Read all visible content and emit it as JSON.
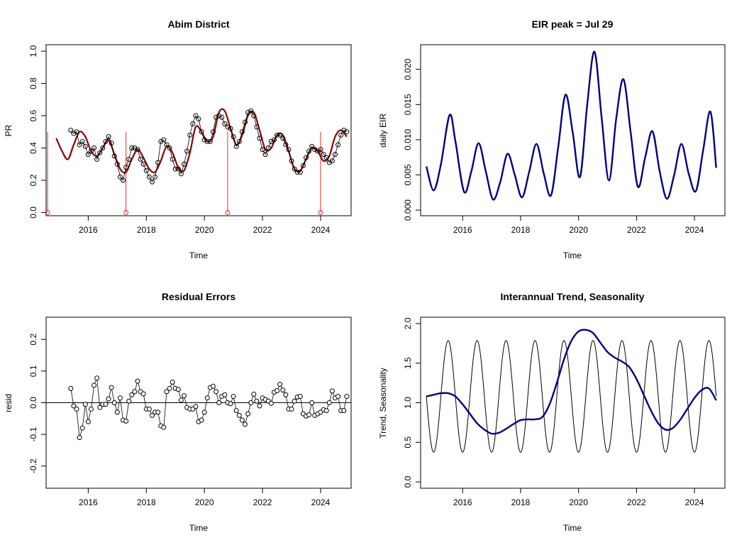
{
  "chart_data": [
    {
      "id": "pr",
      "type": "line",
      "title": "Abim District",
      "xlabel": "Time",
      "ylabel": "PR",
      "xlim": [
        2014.55,
        2025.05
      ],
      "ylim": [
        -0.02,
        1.04
      ],
      "xticks": [
        2016,
        2018,
        2020,
        2022,
        2024
      ],
      "yticks": [
        0.0,
        0.2,
        0.4,
        0.6,
        0.8,
        1.0
      ],
      "ytick_labels": [
        "0.0",
        "0.2",
        "0.4",
        "0.6",
        "0.8",
        "1.0"
      ],
      "fit_color": "#8B0000",
      "observed_color": "#000000",
      "event_color": "#E03020",
      "fit_curve": {
        "x": [
          2014.9,
          2015.1,
          2015.3,
          2015.5,
          2015.7,
          2015.9,
          2016.1,
          2016.3,
          2016.5,
          2016.7,
          2016.9,
          2017.1,
          2017.3,
          2017.5,
          2017.7,
          2017.9,
          2018.1,
          2018.3,
          2018.5,
          2018.7,
          2018.9,
          2019.1,
          2019.3,
          2019.5,
          2019.7,
          2019.9,
          2020.1,
          2020.3,
          2020.5,
          2020.7,
          2020.9,
          2021.1,
          2021.3,
          2021.5,
          2021.7,
          2021.9,
          2022.1,
          2022.3,
          2022.5,
          2022.7,
          2022.9,
          2023.1,
          2023.3,
          2023.5,
          2023.7,
          2023.9,
          2024.1,
          2024.3,
          2024.5,
          2024.7,
          2024.9
        ],
        "y": [
          0.46,
          0.38,
          0.33,
          0.42,
          0.5,
          0.47,
          0.38,
          0.35,
          0.4,
          0.45,
          0.36,
          0.27,
          0.25,
          0.33,
          0.39,
          0.34,
          0.27,
          0.25,
          0.32,
          0.41,
          0.37,
          0.28,
          0.26,
          0.37,
          0.53,
          0.5,
          0.44,
          0.47,
          0.62,
          0.63,
          0.52,
          0.42,
          0.48,
          0.6,
          0.62,
          0.51,
          0.39,
          0.4,
          0.48,
          0.48,
          0.38,
          0.27,
          0.26,
          0.33,
          0.4,
          0.38,
          0.32,
          0.35,
          0.47,
          0.51,
          0.47
        ]
      },
      "observed": {
        "x": [
          2015.4,
          2015.5,
          2015.6,
          2015.7,
          2015.8,
          2015.9,
          2016.0,
          2016.1,
          2016.2,
          2016.3,
          2016.4,
          2016.5,
          2016.6,
          2016.7,
          2016.8,
          2016.9,
          2017.0,
          2017.1,
          2017.2,
          2017.3,
          2017.4,
          2017.5,
          2017.6,
          2017.7,
          2017.8,
          2017.9,
          2018.0,
          2018.1,
          2018.2,
          2018.3,
          2018.4,
          2018.5,
          2018.6,
          2018.7,
          2018.8,
          2018.9,
          2019.0,
          2019.1,
          2019.2,
          2019.3,
          2019.4,
          2019.5,
          2019.6,
          2019.7,
          2019.8,
          2019.9,
          2020.0,
          2020.1,
          2020.2,
          2020.3,
          2020.4,
          2020.5,
          2020.6,
          2020.7,
          2020.8,
          2020.9,
          2021.0,
          2021.1,
          2021.2,
          2021.3,
          2021.4,
          2021.5,
          2021.6,
          2021.7,
          2021.8,
          2021.9,
          2022.0,
          2022.1,
          2022.2,
          2022.3,
          2022.4,
          2022.5,
          2022.6,
          2022.7,
          2022.8,
          2022.9,
          2023.0,
          2023.1,
          2023.2,
          2023.3,
          2023.4,
          2023.5,
          2023.6,
          2023.7,
          2023.8,
          2023.9,
          2024.0,
          2024.1,
          2024.2,
          2024.3,
          2024.4,
          2024.5,
          2024.6,
          2024.7,
          2024.8,
          2024.9
        ],
        "y": [
          0.51,
          0.49,
          0.5,
          0.42,
          0.44,
          0.41,
          0.36,
          0.38,
          0.4,
          0.33,
          0.37,
          0.4,
          0.44,
          0.47,
          0.43,
          0.35,
          0.3,
          0.22,
          0.2,
          0.28,
          0.33,
          0.4,
          0.4,
          0.39,
          0.33,
          0.3,
          0.26,
          0.22,
          0.19,
          0.22,
          0.31,
          0.44,
          0.45,
          0.42,
          0.4,
          0.33,
          0.27,
          0.27,
          0.24,
          0.3,
          0.38,
          0.48,
          0.55,
          0.6,
          0.58,
          0.5,
          0.45,
          0.44,
          0.44,
          0.5,
          0.59,
          0.6,
          0.59,
          0.55,
          0.53,
          0.52,
          0.47,
          0.41,
          0.44,
          0.5,
          0.56,
          0.62,
          0.63,
          0.6,
          0.53,
          0.46,
          0.39,
          0.36,
          0.4,
          0.44,
          0.45,
          0.48,
          0.48,
          0.46,
          0.42,
          0.39,
          0.32,
          0.27,
          0.25,
          0.25,
          0.29,
          0.34,
          0.38,
          0.41,
          0.39,
          0.38,
          0.39,
          0.36,
          0.34,
          0.31,
          0.32,
          0.36,
          0.42,
          0.48,
          0.51,
          0.5
        ]
      },
      "events": {
        "x": [
          2014.6,
          2017.3,
          2020.8,
          2024.0
        ],
        "y_top": [
          0.5,
          0.5,
          0.5,
          0.5
        ]
      }
    },
    {
      "id": "eir",
      "type": "line",
      "title": "EIR peak = Jul 29",
      "xlabel": "Time",
      "ylabel": "daily EIR",
      "xlim": [
        2014.55,
        2025.05
      ],
      "ylim": [
        -0.0008,
        0.0235
      ],
      "xticks": [
        2016,
        2018,
        2020,
        2022,
        2024
      ],
      "yticks": [
        0.0,
        0.005,
        0.01,
        0.015,
        0.02
      ],
      "ytick_labels": [
        "0.000",
        "0.005",
        "0.010",
        "0.015",
        "0.020"
      ],
      "line_color": "#000080",
      "series": {
        "name": "",
        "x": [
          2014.75,
          2015.0,
          2015.25,
          2015.55,
          2015.75,
          2016.05,
          2016.3,
          2016.55,
          2016.8,
          2017.05,
          2017.3,
          2017.55,
          2017.8,
          2018.05,
          2018.3,
          2018.55,
          2018.8,
          2019.05,
          2019.3,
          2019.55,
          2019.8,
          2020.05,
          2020.3,
          2020.55,
          2020.8,
          2021.05,
          2021.3,
          2021.55,
          2021.8,
          2022.05,
          2022.3,
          2022.55,
          2022.8,
          2023.05,
          2023.3,
          2023.55,
          2023.8,
          2024.05,
          2024.3,
          2024.55,
          2024.75
        ],
        "y": [
          0.0062,
          0.0028,
          0.0065,
          0.0135,
          0.0098,
          0.0026,
          0.0055,
          0.0095,
          0.0055,
          0.0015,
          0.004,
          0.008,
          0.005,
          0.0018,
          0.0055,
          0.0094,
          0.0052,
          0.0021,
          0.009,
          0.0164,
          0.011,
          0.0047,
          0.015,
          0.0225,
          0.013,
          0.0042,
          0.013,
          0.0186,
          0.011,
          0.0033,
          0.0075,
          0.0112,
          0.0055,
          0.0016,
          0.005,
          0.0094,
          0.0052,
          0.0027,
          0.0085,
          0.014,
          0.006
        ]
      }
    },
    {
      "id": "resid",
      "type": "scatter",
      "title": "Residual Errors",
      "xlabel": "Time",
      "ylabel": "resid",
      "xlim": [
        2014.55,
        2025.05
      ],
      "ylim": [
        -0.27,
        0.27
      ],
      "xticks": [
        2016,
        2018,
        2020,
        2022,
        2024
      ],
      "yticks": [
        -0.2,
        -0.1,
        0.0,
        0.1,
        0.2
      ],
      "ytick_labels": [
        "-0.2",
        "-0.1",
        "0.0",
        "0.1",
        "0.2"
      ],
      "point_color": "#000000",
      "zero_line": true,
      "series": {
        "name": "",
        "x": [
          2015.4,
          2015.5,
          2015.6,
          2015.7,
          2015.8,
          2015.9,
          2016.0,
          2016.1,
          2016.2,
          2016.3,
          2016.4,
          2016.5,
          2016.6,
          2016.7,
          2016.8,
          2016.9,
          2017.0,
          2017.1,
          2017.2,
          2017.3,
          2017.4,
          2017.5,
          2017.6,
          2017.7,
          2017.8,
          2017.9,
          2018.0,
          2018.1,
          2018.2,
          2018.3,
          2018.4,
          2018.5,
          2018.6,
          2018.7,
          2018.8,
          2018.9,
          2019.0,
          2019.1,
          2019.2,
          2019.3,
          2019.4,
          2019.5,
          2019.6,
          2019.7,
          2019.8,
          2019.9,
          2020.0,
          2020.1,
          2020.2,
          2020.3,
          2020.4,
          2020.5,
          2020.6,
          2020.7,
          2020.8,
          2020.9,
          2021.0,
          2021.1,
          2021.2,
          2021.3,
          2021.4,
          2021.5,
          2021.6,
          2021.7,
          2021.8,
          2021.9,
          2022.0,
          2022.1,
          2022.2,
          2022.3,
          2022.4,
          2022.5,
          2022.6,
          2022.7,
          2022.8,
          2022.9,
          2023.0,
          2023.1,
          2023.2,
          2023.3,
          2023.4,
          2023.5,
          2023.6,
          2023.7,
          2023.8,
          2023.9,
          2024.0,
          2024.1,
          2024.2,
          2024.3,
          2024.4,
          2024.5,
          2024.6,
          2024.7,
          2024.8,
          2024.9
        ],
        "y": [
          0.045,
          -0.01,
          -0.02,
          -0.11,
          -0.08,
          -0.005,
          -0.06,
          -0.02,
          0.055,
          0.078,
          -0.015,
          -0.005,
          -0.005,
          0.012,
          0.048,
          0.0,
          -0.03,
          0.015,
          -0.055,
          -0.058,
          0.005,
          0.025,
          0.035,
          0.068,
          0.035,
          0.028,
          -0.02,
          -0.02,
          -0.04,
          -0.03,
          -0.03,
          -0.073,
          -0.078,
          0.035,
          0.045,
          0.065,
          0.045,
          0.042,
          0.008,
          0.022,
          -0.015,
          -0.02,
          -0.02,
          -0.012,
          -0.06,
          -0.055,
          -0.03,
          0.015,
          0.048,
          0.052,
          0.035,
          0.0,
          0.02,
          0.025,
          0.0,
          -0.003,
          0.02,
          -0.025,
          -0.04,
          -0.055,
          -0.068,
          -0.035,
          0.0,
          0.027,
          0.005,
          -0.01,
          0.015,
          0.01,
          0.005,
          -0.002,
          0.033,
          0.038,
          0.058,
          0.04,
          0.025,
          -0.02,
          -0.02,
          0.005,
          0.018,
          0.02,
          -0.035,
          -0.042,
          -0.038,
          0.0,
          -0.04,
          -0.035,
          -0.03,
          -0.022,
          -0.025,
          0.0,
          0.037,
          0.015,
          0.02,
          -0.025,
          -0.025,
          0.02
        ]
      }
    },
    {
      "id": "trend",
      "type": "line",
      "title": "Interannual Trend, Seasonality",
      "xlabel": "Time",
      "ylabel": "Trend, Seasonality",
      "xlim": [
        2014.55,
        2025.05
      ],
      "ylim": [
        -0.08,
        2.08
      ],
      "xticks": [
        2016,
        2018,
        2020,
        2022,
        2024
      ],
      "yticks": [
        0.0,
        0.5,
        1.0,
        1.5,
        2.0
      ],
      "ytick_labels": [
        "0.0",
        "0.5",
        "1.0",
        "1.5",
        "2.0"
      ],
      "series": [
        {
          "name": "",
          "color": "#000080",
          "x": [
            2014.75,
            2015.0,
            2015.25,
            2015.5,
            2015.75,
            2016.0,
            2016.25,
            2016.5,
            2016.75,
            2017.0,
            2017.25,
            2017.5,
            2017.75,
            2018.0,
            2018.25,
            2018.5,
            2018.75,
            2019.0,
            2019.25,
            2019.5,
            2019.75,
            2020.0,
            2020.25,
            2020.5,
            2020.75,
            2021.0,
            2021.25,
            2021.5,
            2021.75,
            2022.0,
            2022.25,
            2022.5,
            2022.75,
            2023.0,
            2023.25,
            2023.5,
            2023.75,
            2024.0,
            2024.25,
            2024.5,
            2024.75
          ],
          "y": [
            1.08,
            1.1,
            1.12,
            1.12,
            1.08,
            0.98,
            0.86,
            0.74,
            0.66,
            0.61,
            0.62,
            0.67,
            0.73,
            0.78,
            0.79,
            0.79,
            0.82,
            0.98,
            1.25,
            1.55,
            1.78,
            1.9,
            1.92,
            1.88,
            1.76,
            1.64,
            1.57,
            1.52,
            1.45,
            1.3,
            1.1,
            0.9,
            0.74,
            0.66,
            0.68,
            0.78,
            0.92,
            1.06,
            1.16,
            1.18,
            1.03
          ]
        },
        {
          "name": "",
          "color": "#000000",
          "seasonal": {
            "mean": 1.08,
            "amplitude": 0.705,
            "peak_x": [
              2015.5,
              2016.5,
              2017.5,
              2018.5,
              2019.5,
              2020.5,
              2021.5,
              2022.5,
              2023.5,
              2024.5
            ],
            "x_start": 2014.75,
            "x_end": 2024.75
          }
        }
      ]
    }
  ]
}
